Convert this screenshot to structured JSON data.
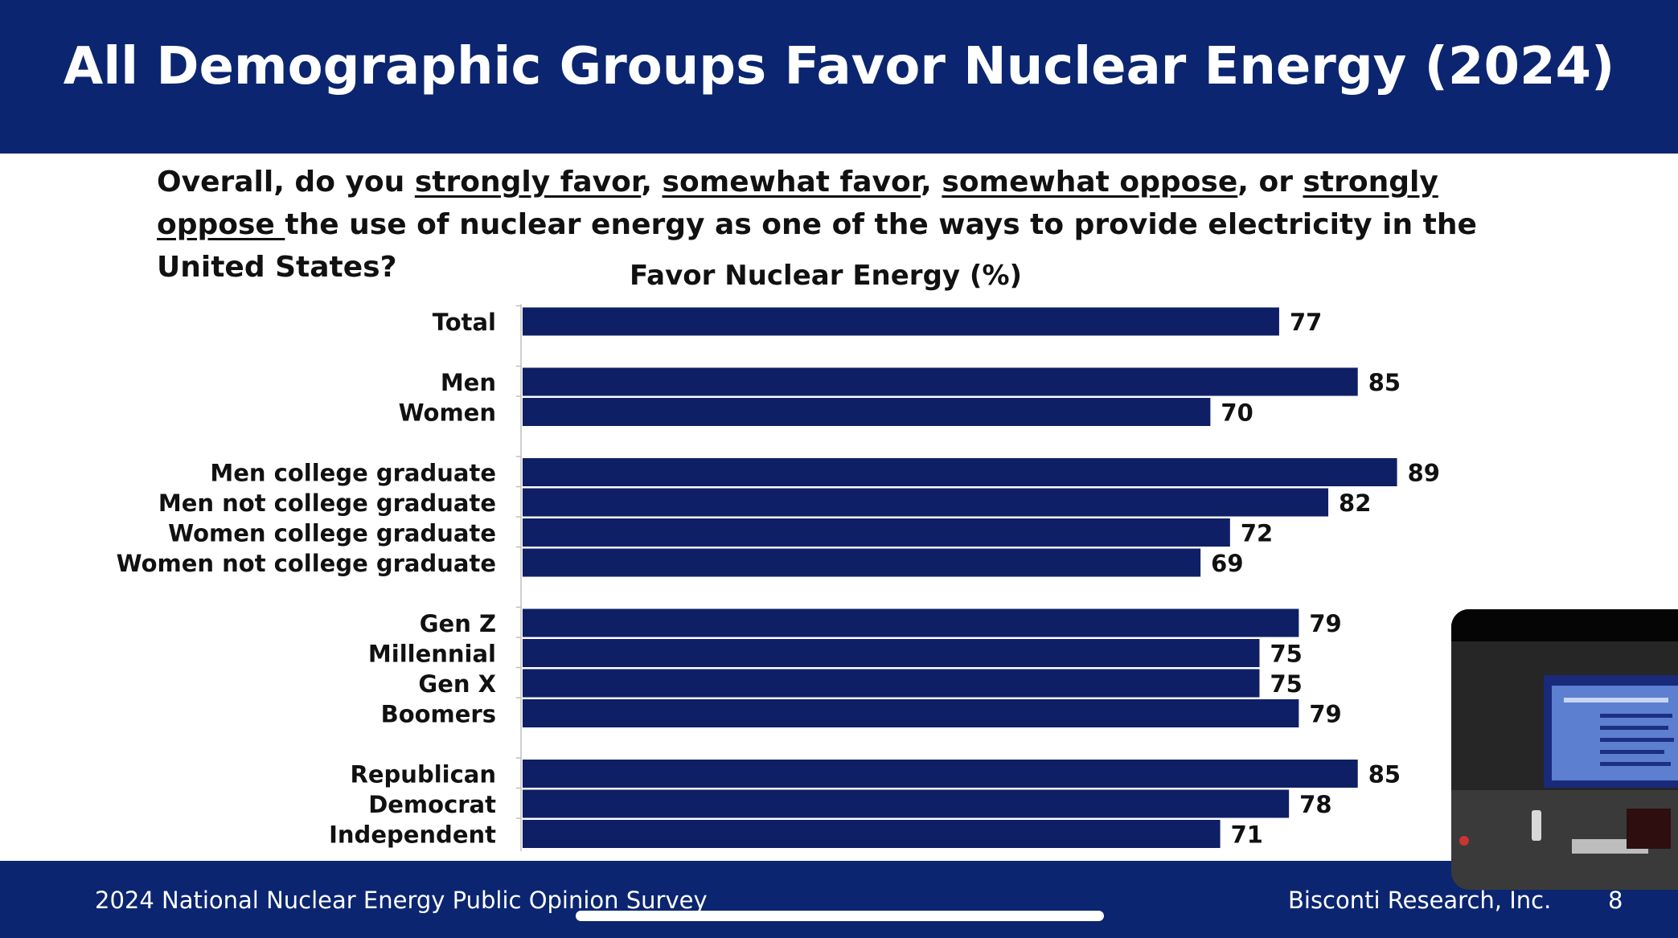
{
  "slide": {
    "title": "All Demographic Groups Favor Nuclear Energy (2024)",
    "question": {
      "p1": "Overall, do you ",
      "u1": "strongly favor",
      "p2": ", ",
      "u2": "somewhat favor",
      "p3": ", ",
      "u3": "somewhat oppose",
      "p4": ", or ",
      "u4": "strongly oppose ",
      "p5": "the use of nuclear energy as one of the ways to provide electricity in the United States?"
    },
    "footer_left": "2024 National Nuclear Energy Public Opinion Survey",
    "footer_right": "Bisconti Research, Inc.",
    "page_number": "8"
  },
  "colors": {
    "header": "#0b2570",
    "bar": "#0f1f66",
    "text": "#111111"
  },
  "chart_data": {
    "type": "bar",
    "orientation": "horizontal",
    "title": "Favor Nuclear Energy (%)",
    "xlim": [
      0,
      100
    ],
    "grid": false,
    "groups": [
      [
        "Total"
      ],
      [
        "Men",
        "Women"
      ],
      [
        "Men college graduate",
        "Men not college graduate",
        "Women college graduate",
        "Women not college graduate"
      ],
      [
        "Gen Z",
        "Millennial",
        "Gen X",
        "Boomers"
      ],
      [
        "Republican",
        "Democrat",
        "Independent"
      ]
    ],
    "categories": [
      "Total",
      "Men",
      "Women",
      "Men college graduate",
      "Men not college graduate",
      "Women college graduate",
      "Women not college graduate",
      "Gen Z",
      "Millennial",
      "Gen X",
      "Boomers",
      "Republican",
      "Democrat",
      "Independent"
    ],
    "values": [
      77,
      85,
      70,
      89,
      82,
      72,
      69,
      79,
      75,
      75,
      79,
      85,
      78,
      71
    ]
  }
}
